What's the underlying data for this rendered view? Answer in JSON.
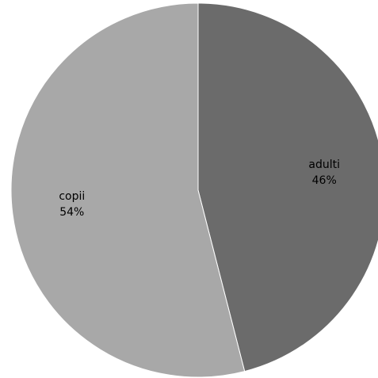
{
  "chart_data": {
    "type": "pie",
    "title": "",
    "slices": [
      {
        "label": "adulti",
        "value": 46,
        "display": "46%",
        "color": "#6b6b6b"
      },
      {
        "label": "copii",
        "value": 54,
        "display": "54%",
        "color": "#a8a8a8"
      }
    ],
    "start": "top",
    "direction": "clockwise",
    "legend": "none"
  }
}
